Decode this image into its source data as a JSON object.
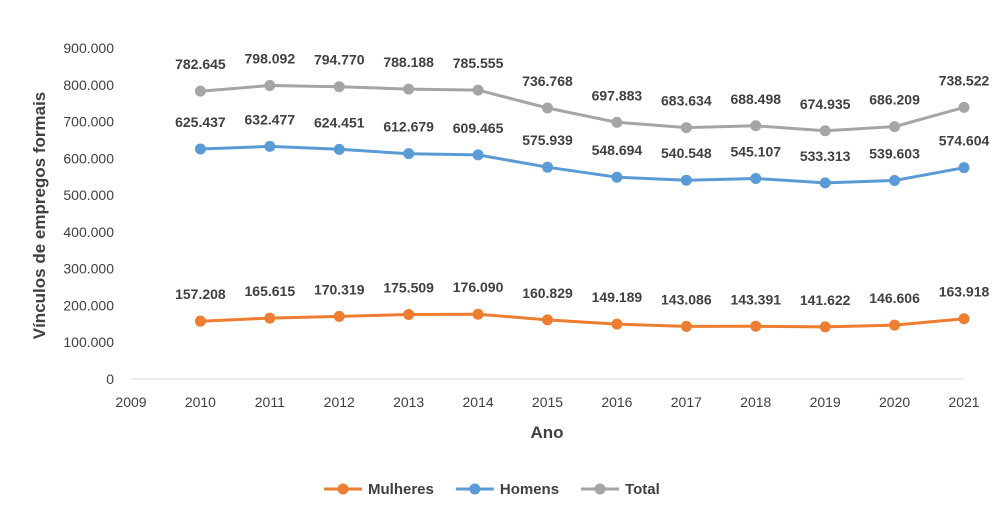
{
  "chart_data": {
    "type": "line",
    "title": "",
    "xlabel": "Ano",
    "ylabel": "Vínculos de empregos formais",
    "x": [
      2010,
      2011,
      2012,
      2013,
      2014,
      2015,
      2016,
      2017,
      2018,
      2019,
      2020,
      2021
    ],
    "xlim": [
      2009,
      2021
    ],
    "x_ticks": [
      "2009",
      "2010",
      "2011",
      "2012",
      "2013",
      "2014",
      "2015",
      "2016",
      "2017",
      "2018",
      "2019",
      "2020",
      "2021"
    ],
    "ylim": [
      0,
      900000
    ],
    "y_ticks": [
      0,
      100000,
      200000,
      300000,
      400000,
      500000,
      600000,
      700000,
      800000,
      900000
    ],
    "y_tick_labels": [
      "0",
      "100.000",
      "200.000",
      "300.000",
      "400.000",
      "500.000",
      "600.000",
      "700.000",
      "800.000",
      "900.000"
    ],
    "grid": false,
    "legend_position": "bottom",
    "series": [
      {
        "name": "Mulheres",
        "color": "#ED7D31",
        "values": [
          157208,
          165615,
          170319,
          175509,
          176090,
          160829,
          149189,
          143086,
          143391,
          141622,
          146606,
          163918
        ],
        "labels": [
          "157.208",
          "165.615",
          "170.319",
          "175.509",
          "176.090",
          "160.829",
          "149.189",
          "143.086",
          "143.391",
          "141.622",
          "146.606",
          "163.918"
        ]
      },
      {
        "name": "Homens",
        "color": "#5B9BD5",
        "values": [
          625437,
          632477,
          624451,
          612679,
          609465,
          575939,
          548694,
          540548,
          545107,
          533313,
          539603,
          574604
        ],
        "labels": [
          "625.437",
          "632.477",
          "624.451",
          "612.679",
          "609.465",
          "575.939",
          "548.694",
          "540.548",
          "545.107",
          "533.313",
          "539.603",
          "574.604"
        ]
      },
      {
        "name": "Total",
        "color": "#A5A5A5",
        "values": [
          782645,
          798092,
          794770,
          788188,
          785555,
          736768,
          697883,
          683634,
          688498,
          674935,
          686209,
          738522
        ],
        "labels": [
          "782.645",
          "798.092",
          "794.770",
          "788.188",
          "785.555",
          "736.768",
          "697.883",
          "683.634",
          "688.498",
          "674.935",
          "686.209",
          "738.522"
        ]
      }
    ]
  }
}
